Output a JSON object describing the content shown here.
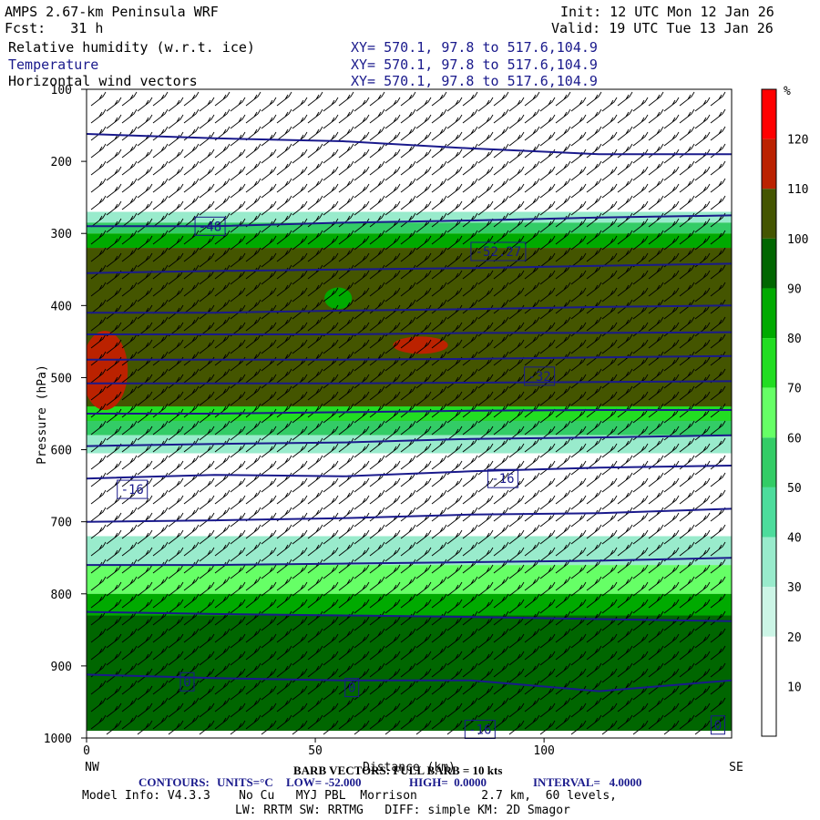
{
  "header": {
    "model": "AMPS 2.67-km Peninsula WRF",
    "fcst": "Fcst:   31 h",
    "init": "Init: 12 UTC Mon 12 Jan 26",
    "valid": "Valid: 19 UTC Tue 13 Jan 26",
    "field1": "Relative humidity (w.r.t. ice)",
    "field2": "Temperature",
    "field3": "Horizontal wind vectors",
    "xy": "XY= 570.1, 97.8 to 517.6,104.9"
  },
  "footer": {
    "barb": "BARB VECTORS: FULL BARB = 10 kts",
    "contours_label": "CONTOURS:",
    "contours_units": "UNITS=°C",
    "low": "LOW= -52.000",
    "high": "HIGH=  0.0000",
    "interval": "INTERVAL=   4.0000",
    "model_info": "Model Info: V4.3.3    No Cu   MYJ PBL  Morrison         2.7 km,  60 levels,",
    "model_info2": "LW: RRTM SW: RRTMG   DIFF: simple KM: 2D Smagor"
  },
  "chart_data": {
    "type": "heatmap",
    "xlabel": "Distance (km)",
    "ylabel": "Pressure (hPa)",
    "x_ticks": [
      0,
      50,
      100
    ],
    "y_ticks": [
      100,
      200,
      300,
      400,
      500,
      600,
      700,
      800,
      900,
      1000
    ],
    "xlim": [
      0,
      141
    ],
    "ylim": [
      1000,
      100
    ],
    "left_end": "NW",
    "right_end": "SE",
    "colorbar": {
      "unit": "%",
      "ticks": [
        10,
        20,
        30,
        40,
        50,
        60,
        70,
        80,
        90,
        100,
        110,
        120
      ],
      "colors": [
        "#ffffff",
        "#ffffff",
        "#ccf5e6",
        "#99ebcc",
        "#4ddc9c",
        "#33cc66",
        "#66ff66",
        "#22dd22",
        "#00aa00",
        "#006600",
        "#445500",
        "#bb2200",
        "#ff0000"
      ]
    },
    "rh_bands": [
      {
        "p_top": 270,
        "p_bot": 285,
        "rh": 35
      },
      {
        "p_top": 285,
        "p_bot": 300,
        "rh": 55
      },
      {
        "p_top": 300,
        "p_bot": 320,
        "rh": 80
      },
      {
        "p_top": 320,
        "p_bot": 560,
        "rh": 100
      },
      {
        "p_top": 540,
        "p_bot": 560,
        "rh": 75
      },
      {
        "p_top": 560,
        "p_bot": 580,
        "rh": 55
      },
      {
        "p_top": 580,
        "p_bot": 605,
        "rh": 35
      },
      {
        "p_top": 720,
        "p_bot": 760,
        "rh": 35
      },
      {
        "p_top": 760,
        "p_bot": 800,
        "rh": 60
      },
      {
        "p_top": 800,
        "p_bot": 830,
        "rh": 85
      },
      {
        "p_top": 830,
        "p_bot": 990,
        "rh": 95
      }
    ],
    "rh_patches": [
      {
        "x": 4,
        "p": 490,
        "rx": 5,
        "rp": 55,
        "rh": 115
      },
      {
        "x": 73,
        "p": 455,
        "rx": 6,
        "rp": 12,
        "rh": 115
      },
      {
        "x": 55,
        "p": 390,
        "rx": 3,
        "rp": 15,
        "rh": 85
      }
    ],
    "temperature_contours": [
      {
        "value": -48,
        "p": [
          290,
          290,
          285,
          282,
          278,
          275
        ]
      },
      {
        "value": -52,
        "p": [
          162,
          168,
          172,
          182,
          190,
          190
        ]
      },
      {
        "value": -44,
        "p": [
          355,
          352,
          350,
          348,
          345,
          342
        ]
      },
      {
        "value": -40,
        "p": [
          410,
          410,
          407,
          405,
          402,
          400
        ]
      },
      {
        "value": -36,
        "p": [
          440,
          440,
          440,
          438,
          438,
          437
        ]
      },
      {
        "value": -32,
        "p": [
          475,
          475,
          475,
          474,
          472,
          470
        ]
      },
      {
        "value": -28,
        "p": [
          508,
          508,
          508,
          507,
          506,
          505
        ]
      },
      {
        "value": -24,
        "p": [
          550,
          550,
          548,
          546,
          545,
          545
        ]
      },
      {
        "value": -20,
        "p": [
          595,
          592,
          590,
          585,
          583,
          580
        ]
      },
      {
        "value": -16,
        "p": [
          640,
          635,
          637,
          630,
          625,
          622
        ]
      },
      {
        "value": -12,
        "p": [
          700,
          698,
          695,
          690,
          688,
          682
        ]
      },
      {
        "value": -8,
        "p": [
          760,
          760,
          758,
          756,
          754,
          750
        ]
      },
      {
        "value": -4,
        "p": [
          825,
          828,
          830,
          832,
          835,
          838
        ]
      },
      {
        "value": 0,
        "p": [
          912,
          917,
          920,
          920,
          935,
          920
        ]
      }
    ],
    "contour_x": [
      0,
      28,
      56,
      84,
      112,
      141
    ],
    "contour_labels": [
      {
        "text": "-48",
        "x": 27,
        "p": 290
      },
      {
        "text": "-52.27",
        "x": 90,
        "p": 325
      },
      {
        "text": "-32",
        "x": 99,
        "p": 498
      },
      {
        "text": "-16",
        "x": 10,
        "p": 655
      },
      {
        "text": "-16",
        "x": 91,
        "p": 640
      },
      {
        "text": "0",
        "x": 22,
        "p": 922
      },
      {
        "text": "0",
        "x": 58,
        "p": 930
      },
      {
        "text": "0",
        "x": 138,
        "p": 982
      },
      {
        "text": "-16",
        "x": 86,
        "p": 988
      }
    ]
  }
}
